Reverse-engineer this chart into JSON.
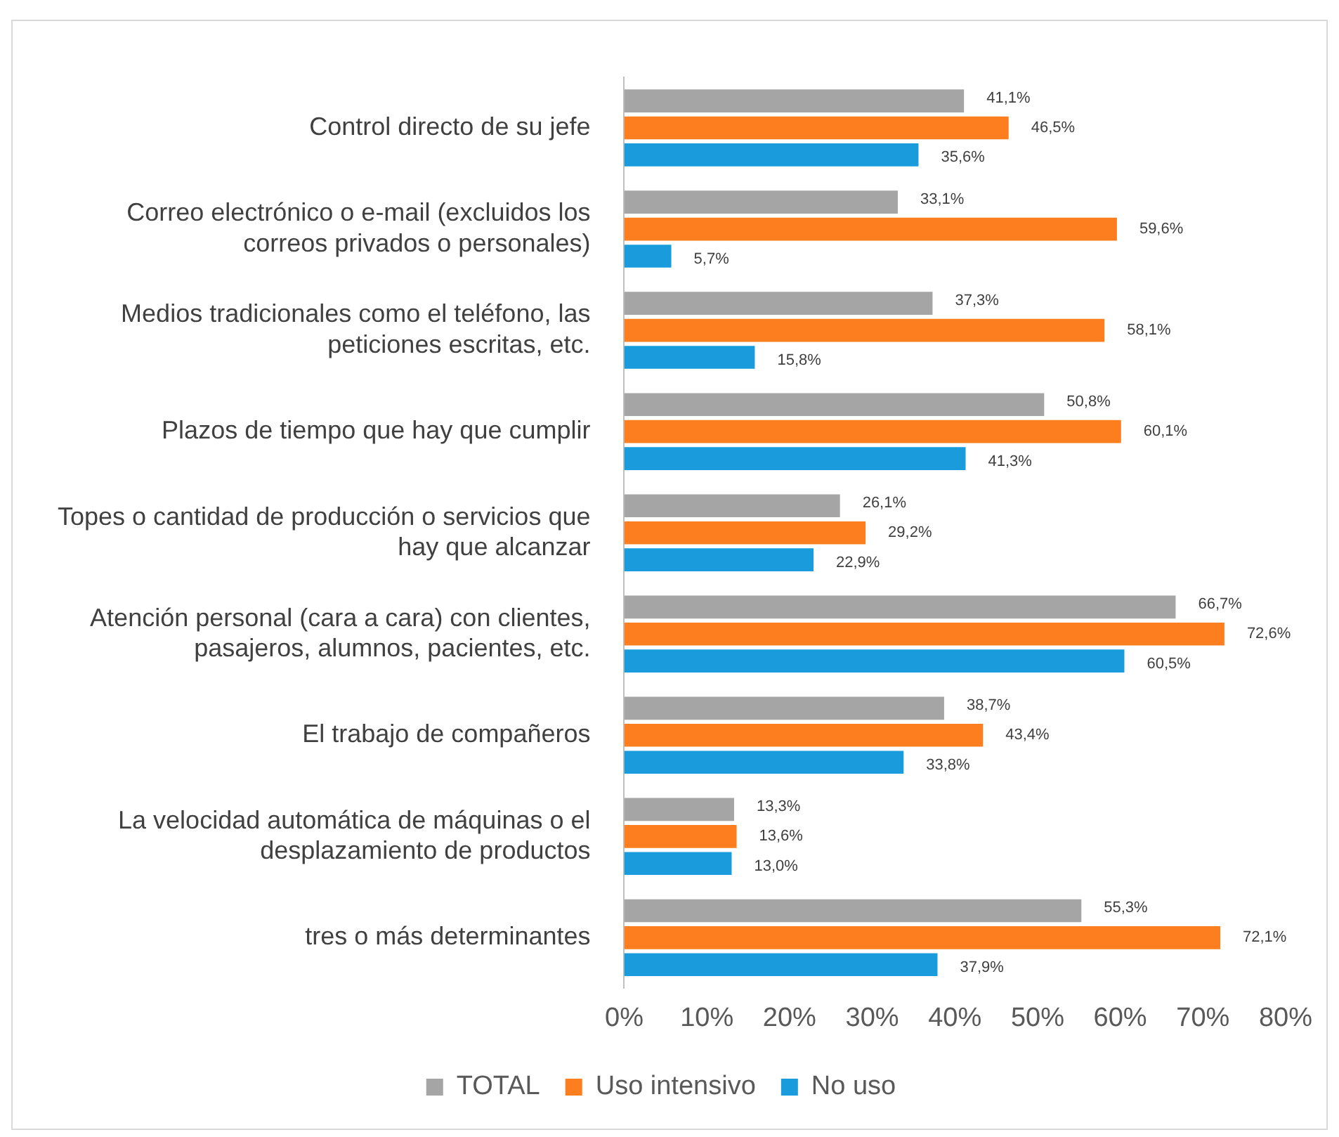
{
  "chart_data": {
    "type": "bar",
    "orientation": "horizontal",
    "categories": [
      "Control directo de su jefe",
      "Correo electrónico o e-mail (excluidos los correos privados o personales)",
      "Medios tradicionales como el teléfono, las peticiones escritas, etc.",
      "Plazos de tiempo que hay que cumplir",
      "Topes o cantidad de producción o servicios que hay que alcanzar",
      "Atención personal (cara a cara) con clientes, pasajeros, alumnos, pacientes, etc.",
      "El trabajo de compañeros",
      "La velocidad automática de máquinas o el desplazamiento de productos",
      "tres o más determinantes"
    ],
    "series": [
      {
        "name": "TOTAL",
        "color": "#a5a5a5",
        "values": [
          41.1,
          33.1,
          37.3,
          50.8,
          26.1,
          66.7,
          38.7,
          13.3,
          55.3
        ],
        "value_labels": [
          "41,1%",
          "33,1%",
          "37,3%",
          "50,8%",
          "26,1%",
          "66,7%",
          "38,7%",
          "13,3%",
          "55,3%"
        ]
      },
      {
        "name": "Uso intensivo",
        "color": "#fd7e1e",
        "values": [
          46.5,
          59.6,
          58.1,
          60.1,
          29.2,
          72.6,
          43.4,
          13.6,
          72.1
        ],
        "value_labels": [
          "46,5%",
          "59,6%",
          "58,1%",
          "60,1%",
          "29,2%",
          "72,6%",
          "43,4%",
          "13,6%",
          "72,1%"
        ]
      },
      {
        "name": "No uso",
        "color": "#1a9cdc",
        "values": [
          35.6,
          5.7,
          15.8,
          41.3,
          22.9,
          60.5,
          33.8,
          13.0,
          37.9
        ],
        "value_labels": [
          "35,6%",
          "5,7%",
          "15,8%",
          "41,3%",
          "22,9%",
          "60,5%",
          "33,8%",
          "13,0%",
          "37,9%"
        ]
      }
    ],
    "xlim": [
      0,
      80
    ],
    "xticks": [
      {
        "value": 0,
        "label": "0%"
      },
      {
        "value": 10,
        "label": "10%"
      },
      {
        "value": 20,
        "label": "20%"
      },
      {
        "value": 30,
        "label": "30%"
      },
      {
        "value": 40,
        "label": "40%"
      },
      {
        "value": 50,
        "label": "50%"
      },
      {
        "value": 60,
        "label": "60%"
      },
      {
        "value": 70,
        "label": "70%"
      },
      {
        "value": 80,
        "label": "80%"
      }
    ],
    "grid": false,
    "legend": "bottom"
  }
}
